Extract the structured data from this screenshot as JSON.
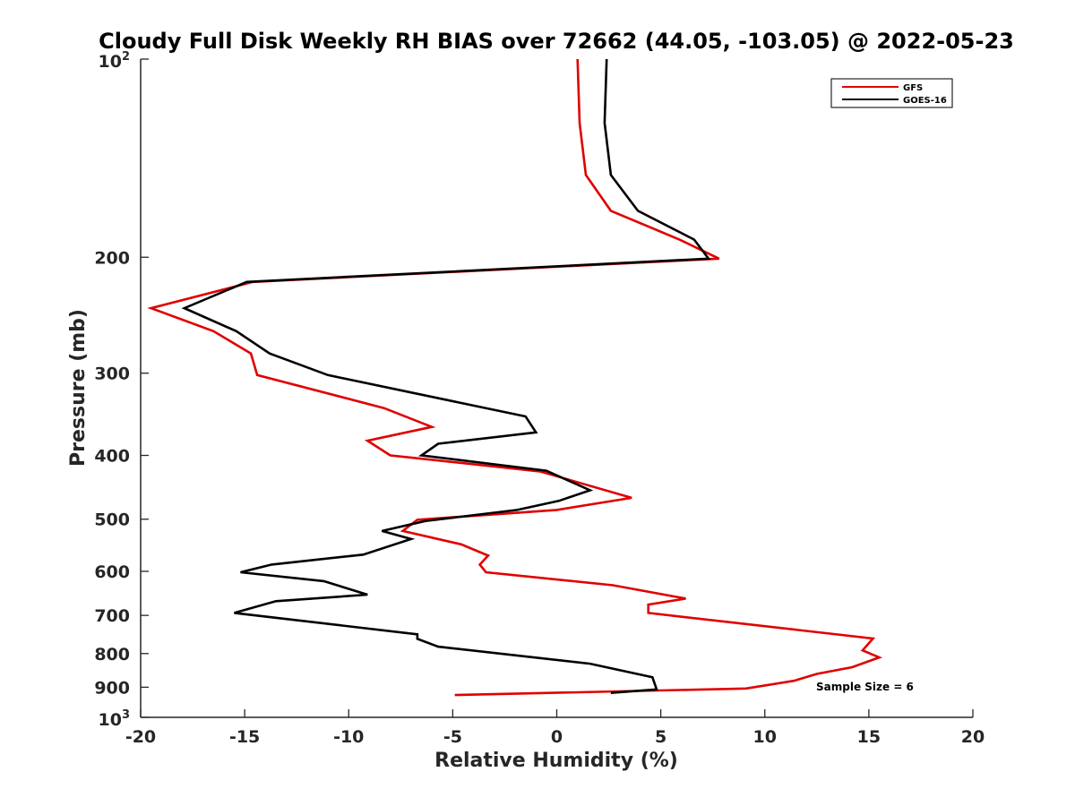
{
  "chart_data": {
    "type": "line",
    "title": "Cloudy Full Disk Weekly RH BIAS over 72662 (44.05, -103.05) @ 2022-05-23",
    "xlabel": "Relative Humidity (%)",
    "ylabel": "Pressure (mb)",
    "xlim": [
      -20,
      20
    ],
    "ylim": [
      100,
      1000
    ],
    "y_scale": "log",
    "y_reversed": true,
    "x_ticks": [
      "-20",
      "-15",
      "-10",
      "-5",
      "0",
      "5",
      "10",
      "15",
      "20"
    ],
    "y_ticks": [
      "200",
      "300",
      "400",
      "500",
      "600",
      "700",
      "800",
      "900"
    ],
    "y_tick_top": {
      "base": "10",
      "exp": "2"
    },
    "y_tick_bottom": {
      "base": "10",
      "exp": "3"
    },
    "grid": false,
    "legend_position": "top-right",
    "annotation": "Sample Size = 6",
    "series": [
      {
        "name": "GFS",
        "color": "#e00000",
        "points": [
          [
            1.0,
            100
          ],
          [
            1.1,
            125
          ],
          [
            1.4,
            150
          ],
          [
            2.6,
            170
          ],
          [
            5.9,
            188
          ],
          [
            7.8,
            201
          ],
          [
            -14.6,
            218
          ],
          [
            -19.5,
            239
          ],
          [
            -16.5,
            259
          ],
          [
            -14.7,
            280
          ],
          [
            -14.4,
            302
          ],
          [
            -8.3,
            339
          ],
          [
            -6.0,
            362
          ],
          [
            -9.1,
            380
          ],
          [
            -8.0,
            400
          ],
          [
            -0.8,
            423
          ],
          [
            3.6,
            464
          ],
          [
            0.0,
            484
          ],
          [
            -6.7,
            501
          ],
          [
            -7.4,
            521
          ],
          [
            -4.6,
            546
          ],
          [
            -3.3,
            568
          ],
          [
            -3.7,
            586
          ],
          [
            -3.4,
            602
          ],
          [
            2.7,
            630
          ],
          [
            6.2,
            660
          ],
          [
            4.4,
            674
          ],
          [
            4.4,
            694
          ],
          [
            15.2,
            759
          ],
          [
            14.7,
            791
          ],
          [
            15.5,
            811
          ],
          [
            14.2,
            839
          ],
          [
            12.5,
            859
          ],
          [
            11.4,
            880
          ],
          [
            9.1,
            904
          ],
          [
            -4.9,
            925
          ]
        ]
      },
      {
        "name": "GOES-16",
        "color": "#000000",
        "points": [
          [
            2.4,
            100
          ],
          [
            2.3,
            125
          ],
          [
            2.6,
            150
          ],
          [
            3.9,
            170
          ],
          [
            6.6,
            188
          ],
          [
            7.3,
            201
          ],
          [
            -14.9,
            218
          ],
          [
            -17.9,
            239
          ],
          [
            -15.4,
            259
          ],
          [
            -13.8,
            280
          ],
          [
            -11.0,
            302
          ],
          [
            -1.5,
            349
          ],
          [
            -1.0,
            369
          ],
          [
            -5.7,
            384
          ],
          [
            -6.5,
            400
          ],
          [
            -0.5,
            422
          ],
          [
            1.6,
            452
          ],
          [
            0.1,
            469
          ],
          [
            -1.9,
            484
          ],
          [
            -6.3,
            503
          ],
          [
            -8.4,
            521
          ],
          [
            -7.0,
            536
          ],
          [
            -9.3,
            566
          ],
          [
            -13.7,
            586
          ],
          [
            -15.2,
            602
          ],
          [
            -11.2,
            621
          ],
          [
            -9.1,
            651
          ],
          [
            -13.5,
            666
          ],
          [
            -15.5,
            694
          ],
          [
            -13.0,
            709
          ],
          [
            -6.7,
            748
          ],
          [
            -6.7,
            760
          ],
          [
            -5.7,
            781
          ],
          [
            1.6,
            829
          ],
          [
            4.6,
            869
          ],
          [
            4.8,
            907
          ],
          [
            2.6,
            918
          ]
        ]
      }
    ]
  }
}
